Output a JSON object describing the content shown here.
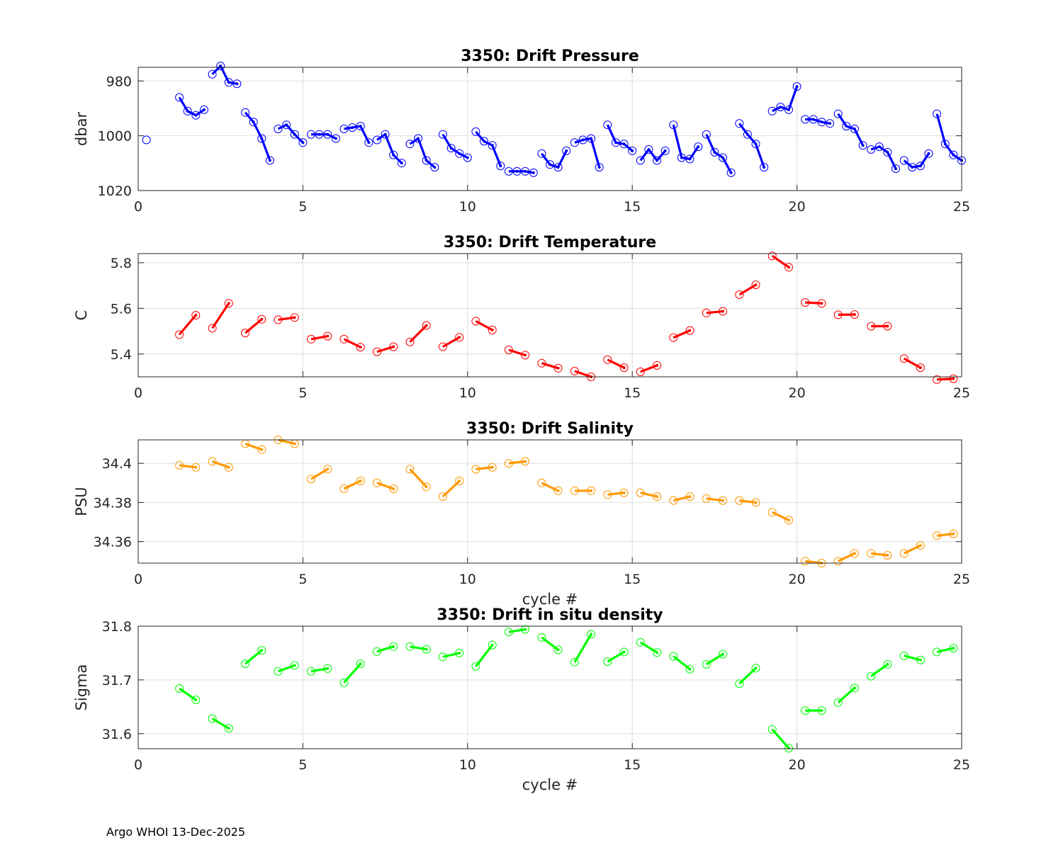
{
  "footer": "Argo WHOI 13-Dec-2025",
  "chart_data": [
    {
      "type": "line",
      "title": "3350: Drift Pressure",
      "ylabel": "dbar",
      "xlabel": "",
      "xlim": [
        0,
        25
      ],
      "ylim": [
        975,
        1020
      ],
      "y_reversed": true,
      "xticks": [
        0,
        5,
        10,
        15,
        20,
        25
      ],
      "yticks": [
        980,
        1000,
        1020
      ],
      "color": "#0000ff",
      "grid": true,
      "series": [
        {
          "x": [
            0.25
          ],
          "y": [
            1001.5
          ]
        },
        {
          "x": [
            1.25,
            1.5,
            1.75,
            2.0
          ],
          "y": [
            986,
            991,
            992.5,
            990.5
          ]
        },
        {
          "x": [
            2.25,
            2.5,
            2.75,
            3.0
          ],
          "y": [
            977.5,
            974.5,
            980.5,
            981
          ]
        },
        {
          "x": [
            3.25,
            3.5,
            3.75,
            4.0
          ],
          "y": [
            991.5,
            995,
            1001,
            1009
          ]
        },
        {
          "x": [
            4.25,
            4.5,
            4.75,
            5.0
          ],
          "y": [
            997.5,
            996,
            999.5,
            1002.5
          ]
        },
        {
          "x": [
            5.25,
            5.5,
            5.75,
            6.0
          ],
          "y": [
            999.5,
            999.5,
            999.5,
            1001
          ]
        },
        {
          "x": [
            6.25,
            6.5,
            6.75,
            7.0
          ],
          "y": [
            997.5,
            997,
            996.5,
            1002.5
          ]
        },
        {
          "x": [
            7.25,
            7.5,
            7.75,
            8.0
          ],
          "y": [
            1001.5,
            999.5,
            1007,
            1010
          ]
        },
        {
          "x": [
            8.25,
            8.5,
            8.75,
            9.0
          ],
          "y": [
            1003,
            1001,
            1009,
            1011.5
          ]
        },
        {
          "x": [
            9.25,
            9.5,
            9.75,
            10.0
          ],
          "y": [
            999.5,
            1004.5,
            1006.5,
            1008
          ]
        },
        {
          "x": [
            10.25,
            10.5,
            10.75,
            11.0
          ],
          "y": [
            998.5,
            1002,
            1003.5,
            1011
          ]
        },
        {
          "x": [
            11.25,
            11.5,
            11.75,
            12.0
          ],
          "y": [
            1013,
            1013,
            1013,
            1013.5
          ]
        },
        {
          "x": [
            12.25,
            12.5,
            12.75,
            13.0
          ],
          "y": [
            1006.5,
            1010.5,
            1011.5,
            1005.5
          ]
        },
        {
          "x": [
            13.25,
            13.5,
            13.75,
            14.0
          ],
          "y": [
            1002.5,
            1001.5,
            1001,
            1011.5
          ]
        },
        {
          "x": [
            14.25,
            14.5,
            14.75,
            15.0
          ],
          "y": [
            996,
            1002.5,
            1003,
            1005.5
          ]
        },
        {
          "x": [
            15.25,
            15.5,
            15.75,
            16.0
          ],
          "y": [
            1009,
            1005,
            1009,
            1005.5
          ]
        },
        {
          "x": [
            16.25,
            16.5,
            16.75,
            17.0
          ],
          "y": [
            996,
            1008,
            1008.5,
            1004
          ]
        },
        {
          "x": [
            17.25,
            17.5,
            17.75,
            18.0
          ],
          "y": [
            999.5,
            1006,
            1008,
            1013.5
          ]
        },
        {
          "x": [
            18.25,
            18.5,
            18.75,
            19.0
          ],
          "y": [
            995.5,
            999.5,
            1003,
            1011.5
          ]
        },
        {
          "x": [
            19.25,
            19.5,
            19.75,
            20.0
          ],
          "y": [
            991,
            989.5,
            990.5,
            982
          ]
        },
        {
          "x": [
            20.25,
            20.5,
            20.75,
            21.0
          ],
          "y": [
            994,
            994,
            995,
            995.5
          ]
        },
        {
          "x": [
            21.25,
            21.5,
            21.75,
            22.0
          ],
          "y": [
            992,
            996.5,
            997.5,
            1003.5
          ]
        },
        {
          "x": [
            22.25,
            22.5,
            22.75,
            23.0
          ],
          "y": [
            1005,
            1004,
            1006,
            1012
          ]
        },
        {
          "x": [
            23.25,
            23.5,
            23.75,
            24.0
          ],
          "y": [
            1009,
            1011.5,
            1011,
            1006.5
          ]
        },
        {
          "x": [
            24.25,
            24.5,
            24.75,
            25.0
          ],
          "y": [
            992,
            1003,
            1007,
            1009
          ]
        }
      ]
    },
    {
      "type": "line",
      "title": "3350: Drift Temperature",
      "ylabel": "C",
      "xlabel": "",
      "xlim": [
        0,
        25
      ],
      "ylim": [
        5.3,
        5.84
      ],
      "xticks": [
        0,
        5,
        10,
        15,
        20,
        25
      ],
      "yticks": [
        5.4,
        5.6,
        5.8
      ],
      "color": "#ff0000",
      "grid": true,
      "series": [
        {
          "x": [
            1.25,
            1.75
          ],
          "y": [
            5.485,
            5.57
          ]
        },
        {
          "x": [
            2.25,
            2.75
          ],
          "y": [
            5.513,
            5.622
          ]
        },
        {
          "x": [
            3.25,
            3.75
          ],
          "y": [
            5.492,
            5.552
          ]
        },
        {
          "x": [
            4.25,
            4.75
          ],
          "y": [
            5.55,
            5.56
          ]
        },
        {
          "x": [
            5.25,
            5.75
          ],
          "y": [
            5.465,
            5.478
          ]
        },
        {
          "x": [
            6.25,
            6.75
          ],
          "y": [
            5.465,
            5.43
          ]
        },
        {
          "x": [
            7.25,
            7.75
          ],
          "y": [
            5.41,
            5.432
          ]
        },
        {
          "x": [
            8.25,
            8.75
          ],
          "y": [
            5.453,
            5.525
          ]
        },
        {
          "x": [
            9.25,
            9.75
          ],
          "y": [
            5.432,
            5.473
          ]
        },
        {
          "x": [
            10.25,
            10.75
          ],
          "y": [
            5.544,
            5.505
          ]
        },
        {
          "x": [
            11.25,
            11.75
          ],
          "y": [
            5.418,
            5.395
          ]
        },
        {
          "x": [
            12.25,
            12.75
          ],
          "y": [
            5.36,
            5.338
          ]
        },
        {
          "x": [
            13.25,
            13.75
          ],
          "y": [
            5.325,
            5.3
          ]
        },
        {
          "x": [
            14.25,
            14.75
          ],
          "y": [
            5.375,
            5.34
          ]
        },
        {
          "x": [
            15.25,
            15.75
          ],
          "y": [
            5.322,
            5.35
          ]
        },
        {
          "x": [
            16.25,
            16.75
          ],
          "y": [
            5.472,
            5.503
          ]
        },
        {
          "x": [
            17.25,
            17.75
          ],
          "y": [
            5.58,
            5.587
          ]
        },
        {
          "x": [
            18.25,
            18.75
          ],
          "y": [
            5.66,
            5.703
          ]
        },
        {
          "x": [
            19.25,
            19.75
          ],
          "y": [
            5.83,
            5.78
          ]
        },
        {
          "x": [
            20.25,
            20.75
          ],
          "y": [
            5.626,
            5.622
          ]
        },
        {
          "x": [
            21.25,
            21.75
          ],
          "y": [
            5.572,
            5.573
          ]
        },
        {
          "x": [
            22.25,
            22.75
          ],
          "y": [
            5.522,
            5.522
          ]
        },
        {
          "x": [
            23.25,
            23.75
          ],
          "y": [
            5.38,
            5.34
          ]
        },
        {
          "x": [
            24.25,
            24.75
          ],
          "y": [
            5.288,
            5.292
          ]
        }
      ]
    },
    {
      "type": "line",
      "title": "3350: Drift Salinity",
      "ylabel": "PSU",
      "xlabel": "cycle #",
      "xlim": [
        0,
        25
      ],
      "ylim": [
        34.349,
        34.412
      ],
      "xticks": [
        0,
        5,
        10,
        15,
        20,
        25
      ],
      "yticks": [
        34.36,
        34.38,
        34.4
      ],
      "color": "#ff9900",
      "grid": true,
      "series": [
        {
          "x": [
            1.25,
            1.75
          ],
          "y": [
            34.399,
            34.398
          ]
        },
        {
          "x": [
            2.25,
            2.75
          ],
          "y": [
            34.401,
            34.398
          ]
        },
        {
          "x": [
            3.25,
            3.75
          ],
          "y": [
            34.41,
            34.407
          ]
        },
        {
          "x": [
            4.25,
            4.75
          ],
          "y": [
            34.412,
            34.41
          ]
        },
        {
          "x": [
            5.25,
            5.75
          ],
          "y": [
            34.392,
            34.397
          ]
        },
        {
          "x": [
            6.25,
            6.75
          ],
          "y": [
            34.387,
            34.391
          ]
        },
        {
          "x": [
            7.25,
            7.75
          ],
          "y": [
            34.39,
            34.387
          ]
        },
        {
          "x": [
            8.25,
            8.75
          ],
          "y": [
            34.397,
            34.388
          ]
        },
        {
          "x": [
            9.25,
            9.75
          ],
          "y": [
            34.383,
            34.391
          ]
        },
        {
          "x": [
            10.25,
            10.75
          ],
          "y": [
            34.397,
            34.398
          ]
        },
        {
          "x": [
            11.25,
            11.75
          ],
          "y": [
            34.4,
            34.401
          ]
        },
        {
          "x": [
            12.25,
            12.75
          ],
          "y": [
            34.39,
            34.386
          ]
        },
        {
          "x": [
            13.25,
            13.75
          ],
          "y": [
            34.386,
            34.386
          ]
        },
        {
          "x": [
            14.25,
            14.75
          ],
          "y": [
            34.384,
            34.385
          ]
        },
        {
          "x": [
            15.25,
            15.75
          ],
          "y": [
            34.385,
            34.383
          ]
        },
        {
          "x": [
            16.25,
            16.75
          ],
          "y": [
            34.381,
            34.383
          ]
        },
        {
          "x": [
            17.25,
            17.75
          ],
          "y": [
            34.382,
            34.381
          ]
        },
        {
          "x": [
            18.25,
            18.75
          ],
          "y": [
            34.381,
            34.38
          ]
        },
        {
          "x": [
            19.25,
            19.75
          ],
          "y": [
            34.375,
            34.371
          ]
        },
        {
          "x": [
            20.25,
            20.75
          ],
          "y": [
            34.35,
            34.349
          ]
        },
        {
          "x": [
            21.25,
            21.75
          ],
          "y": [
            34.35,
            34.354
          ]
        },
        {
          "x": [
            22.25,
            22.75
          ],
          "y": [
            34.354,
            34.353
          ]
        },
        {
          "x": [
            23.25,
            23.75
          ],
          "y": [
            34.354,
            34.358
          ]
        },
        {
          "x": [
            24.25,
            24.75
          ],
          "y": [
            34.363,
            34.364
          ]
        }
      ]
    },
    {
      "type": "line",
      "title": "3350: Drift in situ density",
      "ylabel": "Sigma",
      "xlabel": "cycle #",
      "xlim": [
        0,
        25
      ],
      "ylim": [
        31.572,
        31.8
      ],
      "xticks": [
        0,
        5,
        10,
        15,
        20,
        25
      ],
      "yticks": [
        31.6,
        31.7,
        31.8
      ],
      "color": "#00ff00",
      "grid": true,
      "series": [
        {
          "x": [
            1.25,
            1.75
          ],
          "y": [
            31.684,
            31.663
          ]
        },
        {
          "x": [
            2.25,
            2.75
          ],
          "y": [
            31.628,
            31.61
          ]
        },
        {
          "x": [
            3.25,
            3.75
          ],
          "y": [
            31.73,
            31.755
          ]
        },
        {
          "x": [
            4.25,
            4.75
          ],
          "y": [
            31.716,
            31.727
          ]
        },
        {
          "x": [
            5.25,
            5.75
          ],
          "y": [
            31.716,
            31.721
          ]
        },
        {
          "x": [
            6.25,
            6.75
          ],
          "y": [
            31.695,
            31.73
          ]
        },
        {
          "x": [
            7.25,
            7.75
          ],
          "y": [
            31.753,
            31.762
          ]
        },
        {
          "x": [
            8.25,
            8.75
          ],
          "y": [
            31.762,
            31.757
          ]
        },
        {
          "x": [
            9.25,
            9.75
          ],
          "y": [
            31.743,
            31.75
          ]
        },
        {
          "x": [
            10.25,
            10.75
          ],
          "y": [
            31.725,
            31.765
          ]
        },
        {
          "x": [
            11.25,
            11.75
          ],
          "y": [
            31.789,
            31.794
          ]
        },
        {
          "x": [
            12.25,
            12.75
          ],
          "y": [
            31.779,
            31.756
          ]
        },
        {
          "x": [
            13.25,
            13.75
          ],
          "y": [
            31.733,
            31.785
          ]
        },
        {
          "x": [
            14.25,
            14.75
          ],
          "y": [
            31.734,
            31.752
          ]
        },
        {
          "x": [
            15.25,
            15.75
          ],
          "y": [
            31.77,
            31.751
          ]
        },
        {
          "x": [
            16.25,
            16.75
          ],
          "y": [
            31.744,
            31.72
          ]
        },
        {
          "x": [
            17.25,
            17.75
          ],
          "y": [
            31.729,
            31.748
          ]
        },
        {
          "x": [
            18.25,
            18.75
          ],
          "y": [
            31.693,
            31.722
          ]
        },
        {
          "x": [
            19.25,
            19.75
          ],
          "y": [
            31.608,
            31.573
          ]
        },
        {
          "x": [
            20.25,
            20.75
          ],
          "y": [
            31.643,
            31.643
          ]
        },
        {
          "x": [
            21.25,
            21.75
          ],
          "y": [
            31.658,
            31.685
          ]
        },
        {
          "x": [
            22.25,
            22.75
          ],
          "y": [
            31.707,
            31.729
          ]
        },
        {
          "x": [
            23.25,
            23.75
          ],
          "y": [
            31.745,
            31.737
          ]
        },
        {
          "x": [
            24.25,
            24.75
          ],
          "y": [
            31.752,
            31.759
          ]
        }
      ]
    }
  ]
}
